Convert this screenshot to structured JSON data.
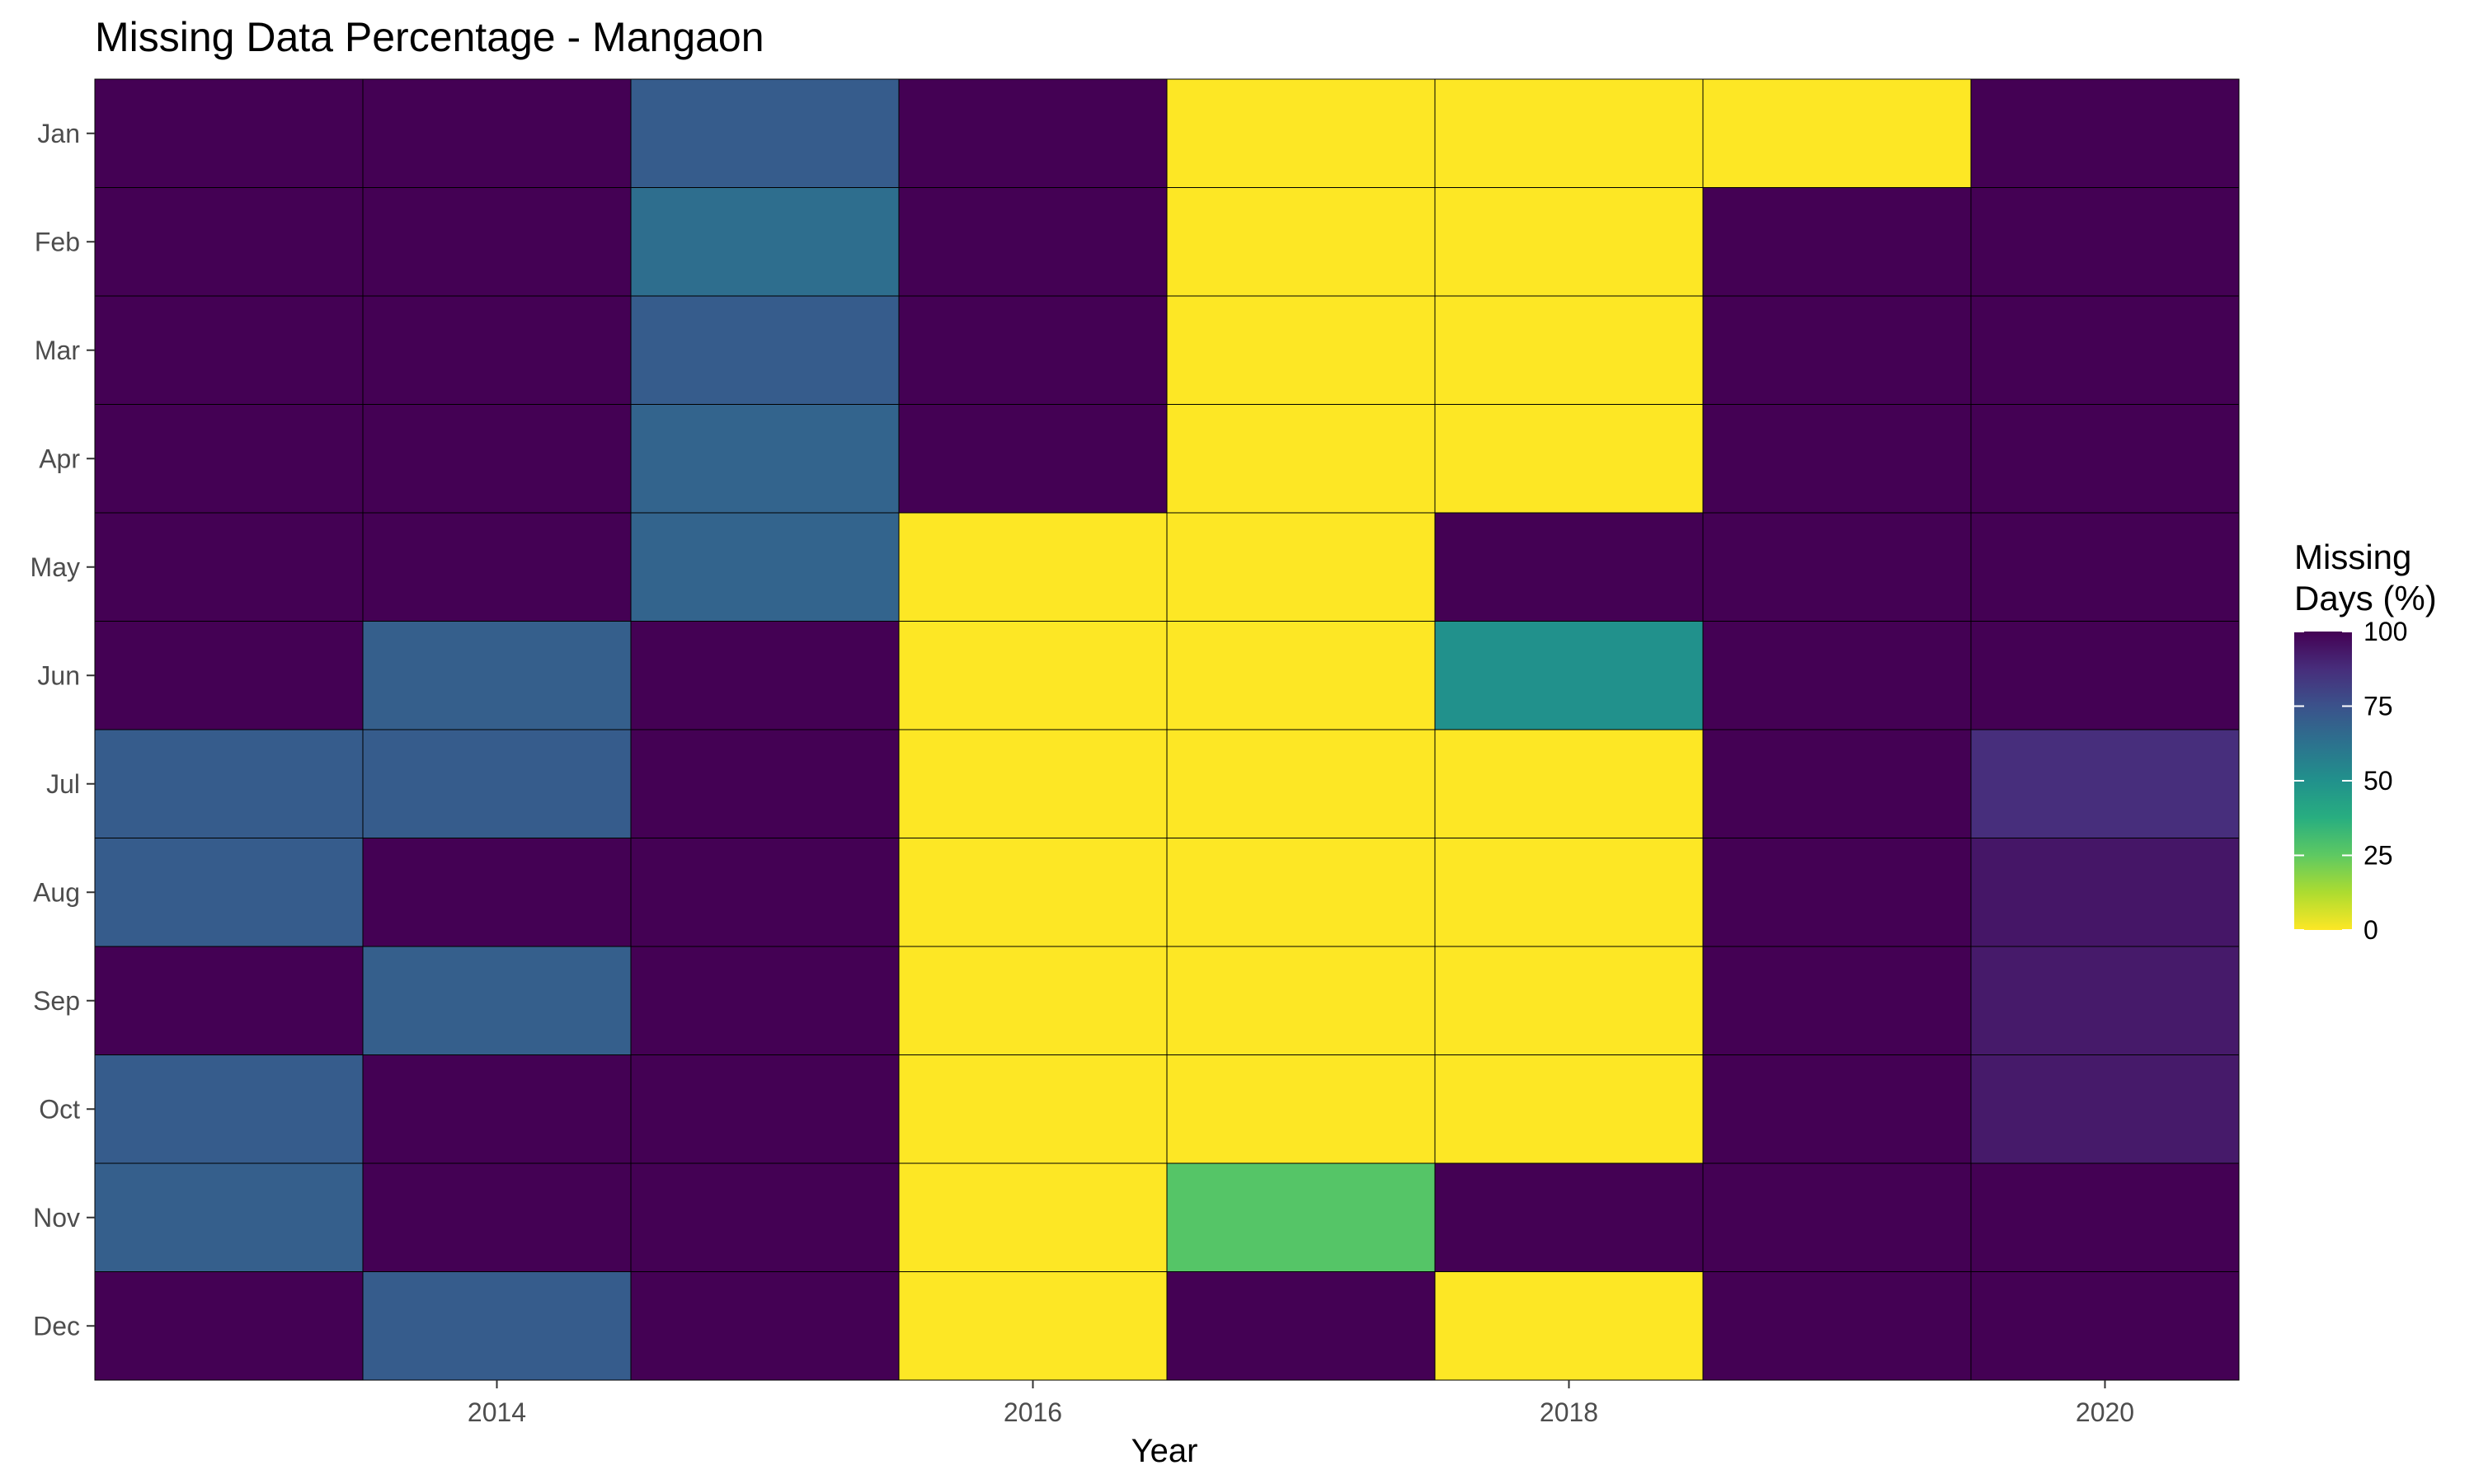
{
  "chart_data": {
    "type": "heatmap",
    "title": "Missing Data Percentage - Mangaon",
    "xlabel": "Year",
    "ylabel": "",
    "x_years": [
      2013,
      2014,
      2015,
      2016,
      2017,
      2018,
      2019,
      2020
    ],
    "x_ticks": [
      "2014",
      "2016",
      "2018",
      "2020"
    ],
    "y_categories": [
      "Jan",
      "Feb",
      "Mar",
      "Apr",
      "May",
      "Jun",
      "Jul",
      "Aug",
      "Sep",
      "Oct",
      "Nov",
      "Dec"
    ],
    "values": [
      [
        100,
        100,
        71,
        100,
        0,
        0,
        0,
        100
      ],
      [
        100,
        100,
        64,
        100,
        0,
        0,
        100,
        100
      ],
      [
        100,
        100,
        71,
        100,
        0,
        0,
        100,
        100
      ],
      [
        100,
        100,
        68,
        100,
        0,
        0,
        100,
        100
      ],
      [
        100,
        100,
        68,
        0,
        0,
        100,
        100,
        100
      ],
      [
        100,
        70,
        100,
        0,
        0,
        50,
        100,
        100
      ],
      [
        71,
        71,
        100,
        0,
        0,
        0,
        100,
        87
      ],
      [
        71,
        100,
        100,
        0,
        0,
        0,
        100,
        94
      ],
      [
        100,
        70,
        100,
        0,
        0,
        0,
        100,
        93
      ],
      [
        71,
        100,
        100,
        0,
        0,
        0,
        100,
        93
      ],
      [
        70,
        100,
        100,
        0,
        27,
        100,
        100,
        100
      ],
      [
        100,
        71,
        100,
        0,
        100,
        0,
        100,
        100
      ]
    ],
    "color_scale": "viridis (reversed)",
    "value_range": [
      0,
      100
    ],
    "legend": {
      "title_line1": "Missing",
      "title_line2": "Days (%)",
      "ticks": [
        "100",
        "75",
        "50",
        "25",
        "0"
      ],
      "position": "right"
    },
    "grid": false
  }
}
